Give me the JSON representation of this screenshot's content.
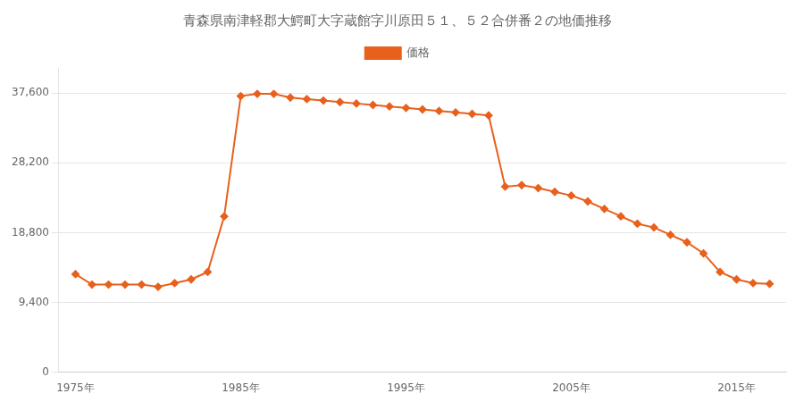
{
  "chart_data": {
    "type": "line",
    "title": "青森県南津軽郡大鰐町大字蔵館字川原田５１、５２合併番２の地価推移",
    "x": [
      1975,
      1976,
      1977,
      1978,
      1979,
      1980,
      1981,
      1982,
      1983,
      1984,
      1985,
      1986,
      1987,
      1988,
      1989,
      1990,
      1991,
      1992,
      1993,
      1994,
      1995,
      1996,
      1997,
      1998,
      1999,
      2000,
      2001,
      2002,
      2003,
      2004,
      2005,
      2006,
      2007,
      2008,
      2009,
      2010,
      2011,
      2012,
      2013,
      2014,
      2015,
      2016,
      2017
    ],
    "series": [
      {
        "name": "価格",
        "color": "#e8601c",
        "marker": "diamond",
        "values": [
          13200,
          11800,
          11800,
          11800,
          11800,
          11500,
          12000,
          12500,
          13500,
          21000,
          37200,
          37500,
          37500,
          37000,
          36800,
          36600,
          36400,
          36200,
          36000,
          35800,
          35600,
          35400,
          35200,
          35000,
          34800,
          34600,
          25000,
          25200,
          24800,
          24300,
          23800,
          23000,
          22000,
          21000,
          20000,
          19500,
          18500,
          17500,
          16000,
          13500,
          12500,
          12000,
          11900
        ]
      }
    ],
    "xlim": [
      1974,
      2018
    ],
    "xticks": [
      {
        "value": 1975,
        "label": "1975年"
      },
      {
        "value": 1985,
        "label": "1985年"
      },
      {
        "value": 1995,
        "label": "1995年"
      },
      {
        "value": 2005,
        "label": "2005年"
      },
      {
        "value": 2015,
        "label": "2015年"
      }
    ],
    "ylim": [
      0,
      41000
    ],
    "yticks": [
      0,
      {
        "value": 9400,
        "label": "9,400"
      },
      {
        "value": 18800,
        "label": "18,800"
      },
      {
        "value": 28200,
        "label": "28,200"
      },
      {
        "value": 37600,
        "label": "37,600"
      }
    ],
    "grid": true,
    "legend": "top"
  }
}
